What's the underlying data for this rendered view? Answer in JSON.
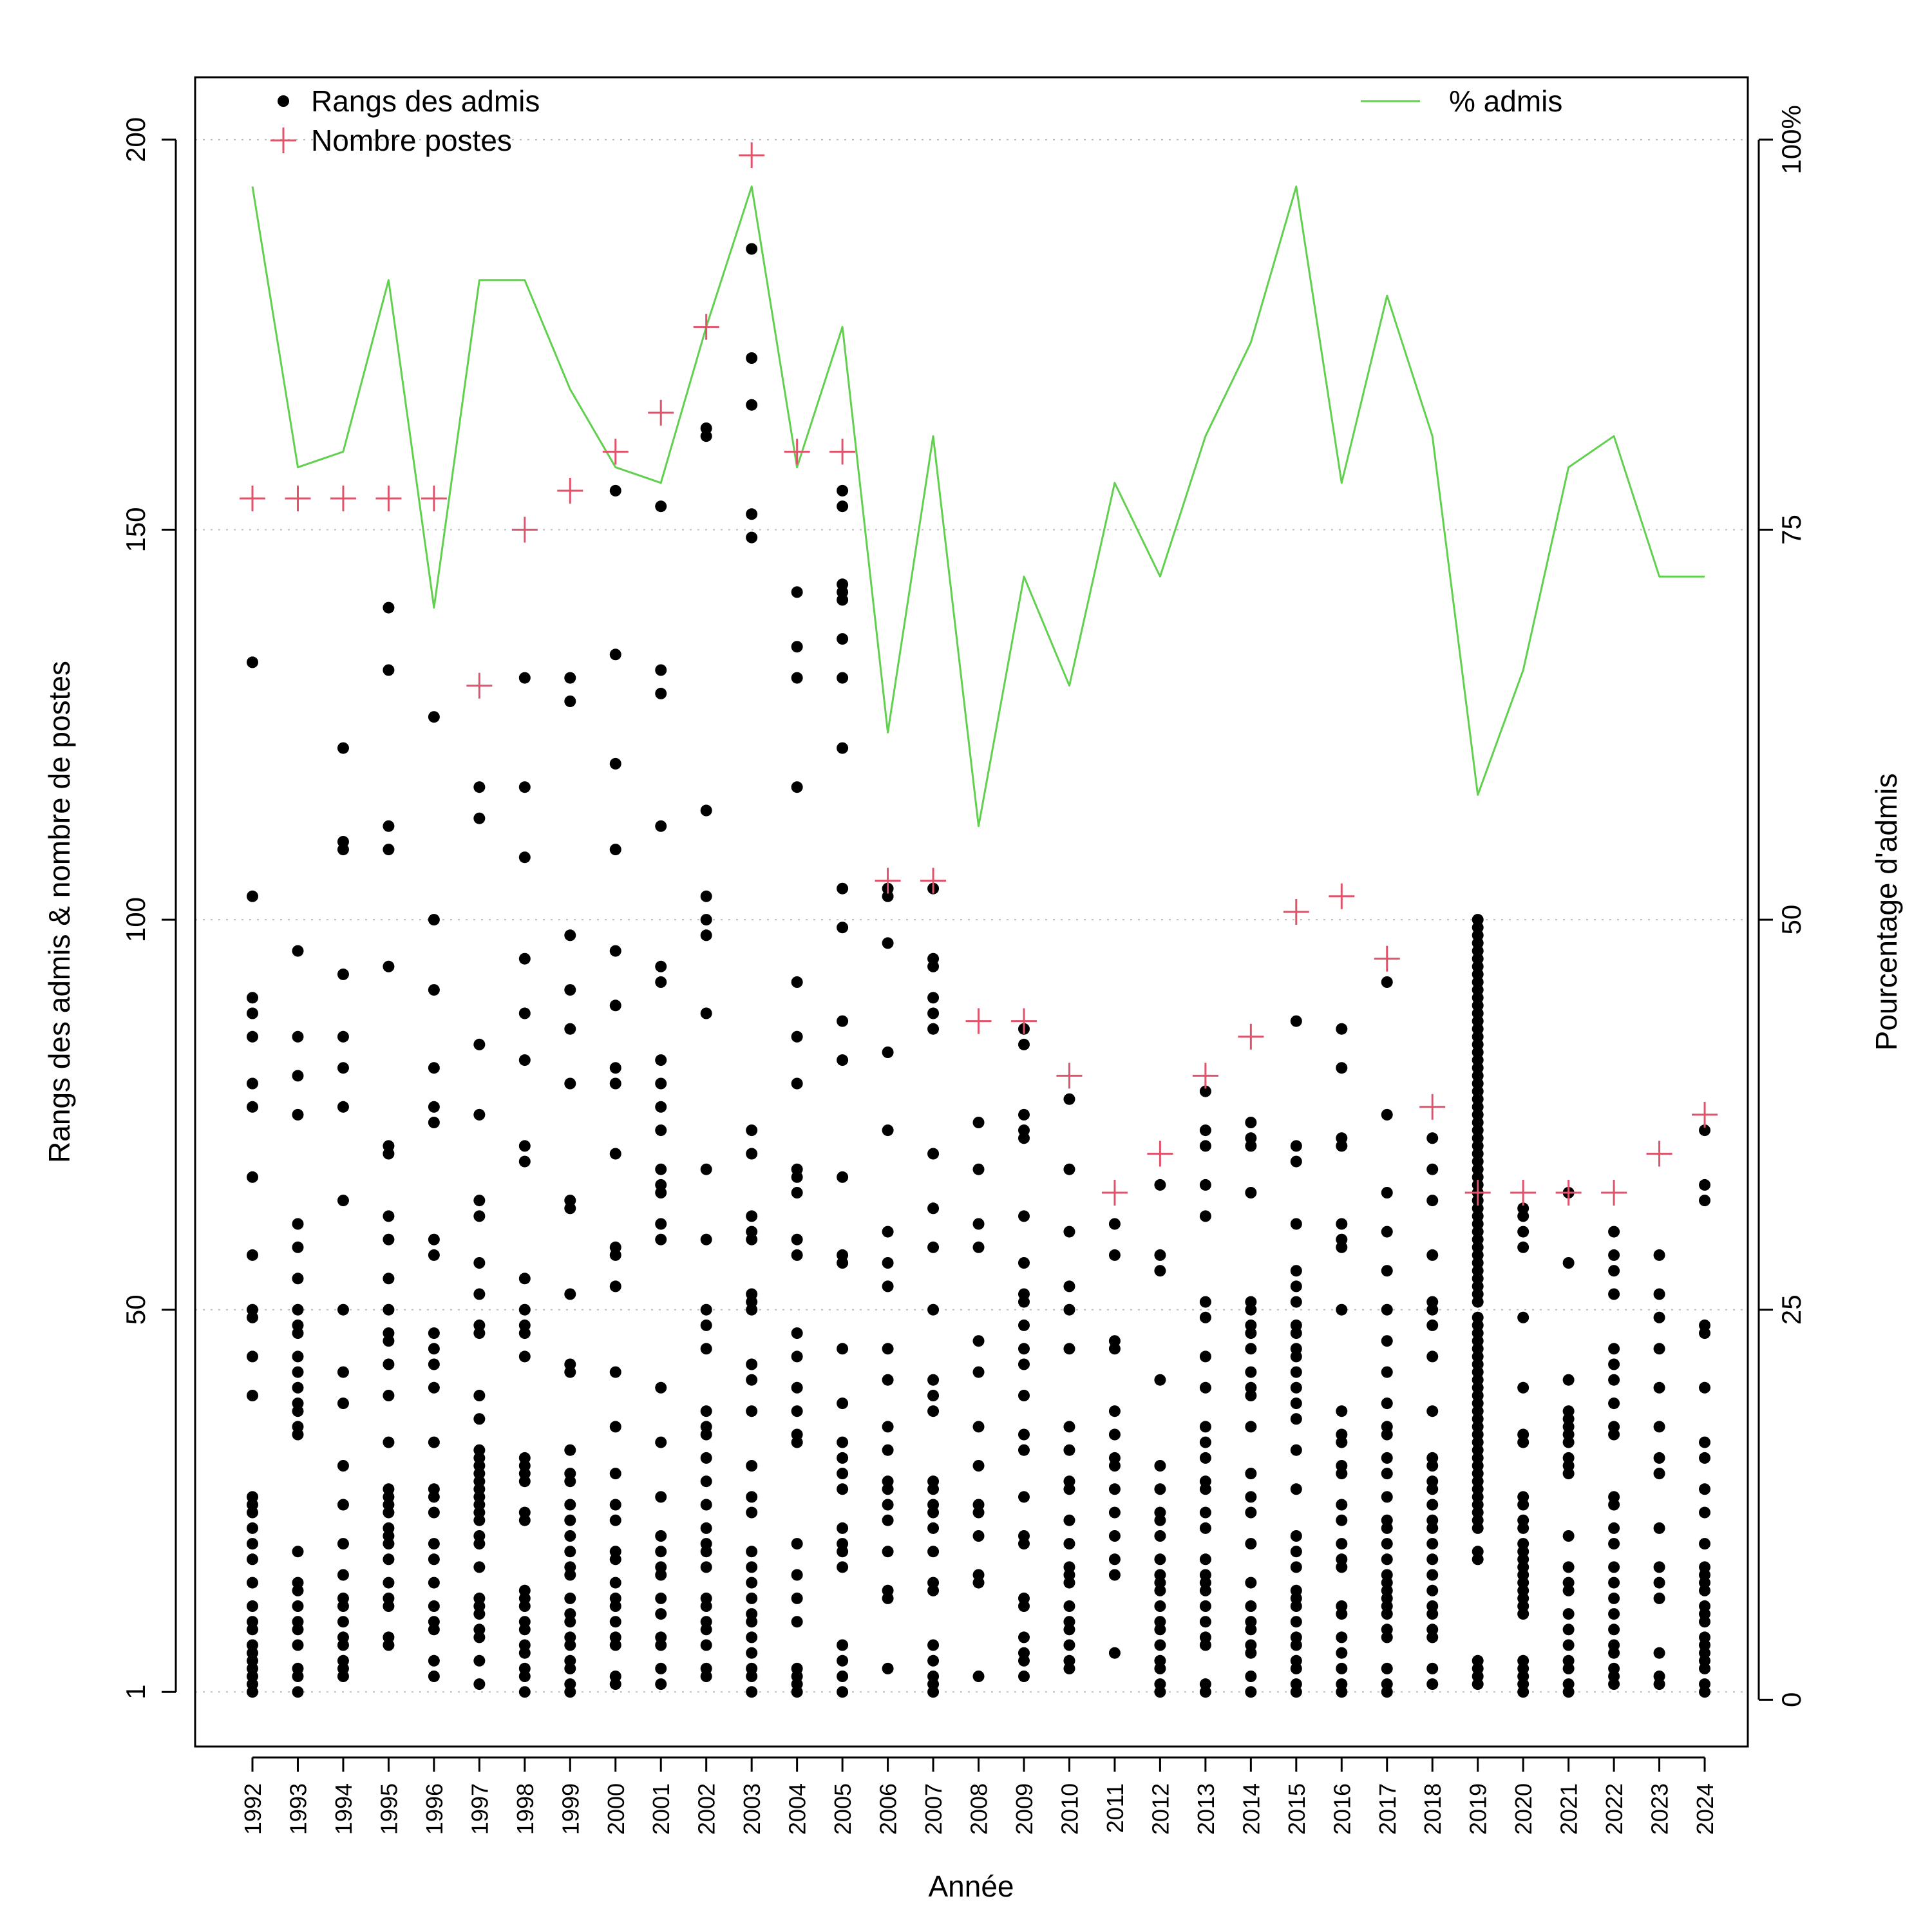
{
  "chart_data": {
    "type": "scatter",
    "xlabel": "Année",
    "ylabel_left": "Rangs des admis & nombre de postes",
    "ylabel_right": "Pourcentage d'admis",
    "left_axis": {
      "range": [
        -6,
        208
      ],
      "ticks": [
        1,
        50,
        100,
        150,
        200
      ]
    },
    "right_axis": {
      "range": [
        -3,
        104
      ],
      "ticks": [
        0,
        25,
        50,
        75,
        100
      ],
      "tick_labels": [
        "0",
        "25",
        "50",
        "75",
        "100%"
      ]
    },
    "grid": "dotted horizontal at left-axis ticks",
    "legend": {
      "left": [
        {
          "label": "Rangs des admis",
          "symbol": "dot",
          "color": "#000000"
        },
        {
          "label": "Nombre postes",
          "symbol": "plus",
          "color": "#df536b"
        }
      ],
      "right": [
        {
          "label": "% admis",
          "symbol": "line",
          "color": "#61d04f"
        }
      ]
    },
    "colors": {
      "ranks": "#000000",
      "posts": "#df536b",
      "pct": "#61d04f"
    },
    "years": [
      1992,
      1993,
      1994,
      1995,
      1996,
      1997,
      1998,
      1999,
      2000,
      2001,
      2002,
      2003,
      2004,
      2005,
      2006,
      2007,
      2008,
      2009,
      2010,
      2011,
      2012,
      2013,
      2014,
      2015,
      2016,
      2017,
      2018,
      2019,
      2020,
      2021,
      2022,
      2023,
      2024
    ],
    "series": [
      {
        "name": "Nombre postes",
        "axis": "left",
        "values": [
          154,
          154,
          154,
          154,
          154,
          130,
          150,
          155,
          160,
          165,
          176,
          198,
          160,
          160,
          105,
          105,
          87,
          87,
          80,
          65,
          70,
          80,
          85,
          101,
          103,
          95,
          76,
          65,
          65,
          65,
          65,
          70,
          75
        ]
      },
      {
        "name": "% admis",
        "axis": "right",
        "values": [
          97,
          79,
          80,
          91,
          70,
          91,
          91,
          84,
          79,
          78,
          88,
          97,
          79,
          88,
          62,
          81,
          56,
          72,
          65,
          78,
          72,
          81,
          87,
          97,
          78,
          90,
          81,
          58,
          66,
          79,
          81,
          72,
          72
        ]
      },
      {
        "name": "Rangs des admis",
        "axis": "left",
        "points_by_year": [
          [
            1,
            2,
            3,
            4,
            5,
            6,
            7,
            9,
            10,
            12,
            15,
            18,
            20,
            22,
            24,
            25,
            26,
            39,
            44,
            49,
            50,
            57,
            67,
            76,
            79,
            85,
            88,
            90,
            103,
            133
          ],
          [
            1,
            3,
            4,
            7,
            9,
            10,
            12,
            14,
            15,
            19,
            34,
            35,
            37,
            38,
            40,
            42,
            44,
            47,
            48,
            50,
            54,
            58,
            61,
            75,
            80,
            85,
            96
          ],
          [
            3,
            4,
            5,
            7,
            8,
            10,
            12,
            13,
            16,
            20,
            25,
            30,
            38,
            42,
            50,
            64,
            76,
            81,
            85,
            93,
            109,
            110,
            122
          ],
          [
            7,
            8,
            12,
            13,
            15,
            18,
            20,
            21,
            22,
            24,
            25,
            26,
            27,
            33,
            39,
            43,
            46,
            47,
            50,
            54,
            59,
            62,
            70,
            71,
            94,
            109,
            112,
            132,
            140
          ],
          [
            3,
            5,
            9,
            10,
            12,
            15,
            18,
            20,
            24,
            26,
            27,
            33,
            40,
            43,
            45,
            47,
            57,
            59,
            74,
            76,
            81,
            91,
            100,
            126
          ],
          [
            2,
            5,
            8,
            9,
            11,
            12,
            13,
            17,
            20,
            21,
            23,
            24,
            25,
            26,
            27,
            28,
            29,
            30,
            31,
            32,
            36,
            39,
            47,
            48,
            52,
            56,
            62,
            64,
            75,
            84,
            113,
            117
          ],
          [
            1,
            3,
            4,
            6,
            7,
            9,
            10,
            12,
            13,
            14,
            23,
            24,
            28,
            29,
            30,
            31,
            44,
            47,
            48,
            50,
            54,
            69,
            71,
            82,
            88,
            95,
            108,
            117,
            131
          ],
          [
            1,
            2,
            4,
            5,
            7,
            8,
            10,
            11,
            13,
            16,
            17,
            19,
            21,
            23,
            25,
            28,
            29,
            32,
            42,
            43,
            52,
            63,
            64,
            79,
            86,
            91,
            98,
            128,
            131
          ],
          [
            2,
            3,
            7,
            8,
            10,
            12,
            13,
            15,
            18,
            19,
            23,
            25,
            29,
            35,
            42,
            53,
            57,
            58,
            70,
            79,
            81,
            89,
            96,
            109,
            120,
            134,
            155
          ],
          [
            2,
            4,
            7,
            8,
            11,
            13,
            16,
            17,
            19,
            21,
            26,
            33,
            40,
            59,
            61,
            65,
            66,
            68,
            73,
            76,
            79,
            82,
            92,
            94,
            112,
            129,
            132,
            153
          ],
          [
            3,
            4,
            7,
            9,
            10,
            12,
            13,
            17,
            19,
            20,
            22,
            25,
            28,
            31,
            34,
            35,
            37,
            45,
            48,
            50,
            59,
            68,
            88,
            98,
            100,
            103,
            114,
            162,
            163
          ],
          [
            1,
            3,
            4,
            6,
            8,
            10,
            11,
            13,
            15,
            17,
            19,
            24,
            26,
            30,
            37,
            41,
            43,
            50,
            51,
            52,
            59,
            60,
            62,
            70,
            73,
            149,
            152,
            166,
            172,
            186
          ],
          [
            1,
            2,
            3,
            4,
            10,
            13,
            16,
            20,
            33,
            34,
            37,
            40,
            44,
            47,
            57,
            59,
            65,
            67,
            68,
            79,
            85,
            92,
            117,
            131,
            135,
            142
          ],
          [
            1,
            3,
            5,
            7,
            17,
            19,
            20,
            22,
            27,
            29,
            31,
            33,
            38,
            45,
            56,
            57,
            67,
            82,
            87,
            99,
            104,
            122,
            131,
            136,
            141,
            142,
            143,
            153,
            155
          ],
          [
            4,
            13,
            14,
            19,
            23,
            25,
            27,
            28,
            32,
            35,
            41,
            45,
            53,
            56,
            60,
            73,
            83,
            97,
            103,
            104
          ],
          [
            1,
            2,
            3,
            5,
            7,
            14,
            15,
            19,
            22,
            24,
            25,
            27,
            28,
            37,
            39,
            41,
            50,
            58,
            63,
            70,
            86,
            88,
            90,
            94,
            95,
            104
          ],
          [
            3,
            15,
            16,
            21,
            24,
            25,
            30,
            35,
            42,
            46,
            58,
            61,
            68,
            74
          ],
          [
            3,
            5,
            6,
            8,
            12,
            13,
            20,
            21,
            26,
            32,
            34,
            39,
            43,
            45,
            48,
            51,
            52,
            56,
            62,
            72,
            73,
            75,
            84,
            86
          ],
          [
            4,
            5,
            7,
            9,
            10,
            12,
            15,
            16,
            17,
            20,
            23,
            27,
            28,
            32,
            35,
            45,
            50,
            53,
            60,
            68,
            77
          ],
          [
            6,
            16,
            18,
            21,
            24,
            27,
            30,
            31,
            34,
            37,
            45,
            46,
            57,
            61
          ],
          [
            1,
            2,
            4,
            5,
            7,
            9,
            10,
            12,
            14,
            15,
            16,
            18,
            21,
            23,
            24,
            27,
            30,
            41,
            55,
            57,
            66
          ],
          [
            1,
            2,
            7,
            8,
            10,
            12,
            14,
            15,
            16,
            18,
            22,
            24,
            27,
            28,
            31,
            33,
            35,
            40,
            44,
            49,
            51,
            62,
            66,
            71,
            73,
            78
          ],
          [
            1,
            3,
            6,
            7,
            9,
            10,
            12,
            15,
            20,
            24,
            26,
            29,
            35,
            39,
            40,
            42,
            45,
            47,
            48,
            50,
            51,
            65,
            71,
            72,
            74
          ],
          [
            1,
            2,
            4,
            5,
            7,
            8,
            10,
            12,
            13,
            14,
            17,
            19,
            21,
            27,
            32,
            36,
            38,
            40,
            42,
            44,
            45,
            47,
            48,
            51,
            53,
            55,
            61,
            69,
            71,
            87
          ],
          [
            1,
            2,
            4,
            6,
            8,
            11,
            12,
            17,
            18,
            20,
            23,
            25,
            29,
            30,
            33,
            34,
            37,
            50,
            58,
            59,
            61,
            71,
            72,
            81,
            86
          ],
          [
            1,
            2,
            4,
            8,
            9,
            11,
            12,
            13,
            14,
            15,
            16,
            18,
            20,
            22,
            23,
            26,
            29,
            31,
            34,
            35,
            38,
            42,
            46,
            50,
            55,
            60,
            65,
            75,
            92
          ],
          [
            2,
            4,
            8,
            9,
            11,
            12,
            14,
            16,
            18,
            20,
            22,
            23,
            25,
            27,
            28,
            30,
            31,
            37,
            44,
            48,
            50,
            51,
            57,
            64,
            68,
            72
          ],
          [
            2,
            3,
            4,
            5,
            18,
            19,
            22,
            23,
            24,
            25,
            26,
            27,
            28,
            29,
            30,
            31,
            32,
            33,
            34,
            35,
            36,
            37,
            38,
            39,
            40,
            41,
            42,
            43,
            44,
            45,
            46,
            47,
            48,
            49,
            51,
            52,
            53,
            54,
            55,
            56,
            57,
            58,
            59,
            60,
            61,
            62,
            63,
            64,
            65,
            66,
            67,
            68,
            69,
            70,
            71,
            72,
            73,
            74,
            75,
            76,
            77,
            78,
            79,
            80,
            81,
            82,
            83,
            84,
            85,
            86,
            87,
            88,
            89,
            90,
            91,
            92,
            93,
            94,
            95,
            96,
            97,
            98,
            99,
            100
          ],
          [
            1,
            2,
            3,
            4,
            5,
            11,
            12,
            13,
            14,
            15,
            16,
            17,
            18,
            19,
            20,
            22,
            23,
            25,
            26,
            33,
            34,
            40,
            49,
            58,
            60,
            62,
            63
          ],
          [
            1,
            2,
            4,
            5,
            7,
            9,
            11,
            14,
            15,
            17,
            21,
            29,
            30,
            31,
            33,
            34,
            35,
            36,
            37,
            41,
            56,
            65
          ],
          [
            2,
            3,
            4,
            6,
            7,
            9,
            11,
            13,
            15,
            17,
            20,
            22,
            25,
            26,
            34,
            35,
            38,
            41,
            43,
            45,
            52,
            55,
            57,
            60
          ],
          [
            2,
            3,
            6,
            13,
            15,
            17,
            22,
            29,
            31,
            35,
            40,
            45,
            49,
            52,
            57
          ],
          [
            1,
            2,
            4,
            5,
            6,
            7,
            8,
            10,
            11,
            12,
            14,
            15,
            16,
            17,
            20,
            24,
            27,
            31,
            33,
            40,
            47,
            48,
            64,
            66,
            73
          ]
        ]
      }
    ]
  }
}
